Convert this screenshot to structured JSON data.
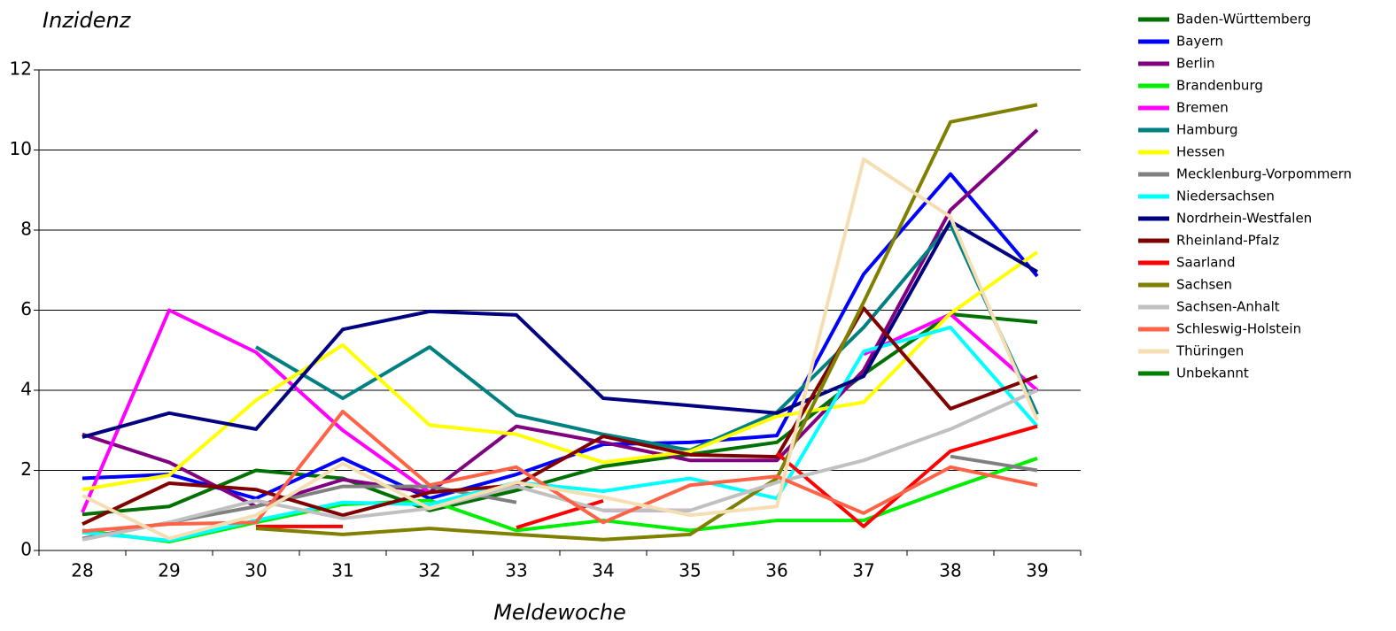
{
  "chart_data": {
    "type": "line",
    "title": "Inzidenz",
    "x_label": "Meldewoche",
    "categories": [
      "28",
      "29",
      "30",
      "31",
      "32",
      "33",
      "34",
      "35",
      "36",
      "37",
      "38",
      "39"
    ],
    "ylim": [
      0,
      12
    ],
    "yticks": [
      0,
      2,
      4,
      6,
      8,
      10,
      12
    ],
    "grid": true,
    "series": [
      {
        "name": "Baden-Württemberg",
        "color": "#007000",
        "values": [
          0.9,
          1.1,
          2.0,
          1.8,
          1.0,
          1.5,
          2.1,
          2.4,
          2.7,
          4.4,
          5.9,
          5.7
        ]
      },
      {
        "name": "Bayern",
        "color": "#0000ff",
        "values": [
          1.8,
          1.9,
          1.3,
          2.3,
          1.3,
          1.9,
          2.65,
          2.7,
          2.87,
          6.9,
          9.4,
          6.85
        ]
      },
      {
        "name": "Berlin",
        "color": "#800080",
        "values": [
          2.9,
          2.2,
          1.1,
          1.77,
          1.45,
          3.1,
          2.7,
          2.25,
          2.25,
          4.5,
          8.5,
          10.5
        ]
      },
      {
        "name": "Brandenburg",
        "color": "#00ee00",
        "values": [
          0.5,
          0.22,
          0.7,
          1.15,
          1.25,
          0.5,
          0.75,
          0.5,
          0.75,
          0.75,
          1.55,
          2.3
        ]
      },
      {
        "name": "Bremen",
        "color": "#ff00ff",
        "values": [
          0.95,
          6.0,
          4.95,
          3.0,
          1.45,
          null,
          1.0,
          1.0,
          null,
          4.9,
          5.9,
          4.0
        ]
      },
      {
        "name": "Hamburg",
        "color": "#008080",
        "values": [
          null,
          null,
          5.08,
          3.8,
          5.08,
          3.38,
          2.9,
          2.5,
          3.45,
          5.57,
          8.15,
          3.4
        ]
      },
      {
        "name": "Hessen",
        "color": "#ffff00",
        "values": [
          1.52,
          1.88,
          3.75,
          5.13,
          3.13,
          2.9,
          2.2,
          2.47,
          3.35,
          3.7,
          5.92,
          7.45
        ]
      },
      {
        "name": "Mecklenburg-Vorpommern",
        "color": "#808080",
        "values": [
          0.3,
          0.7,
          1.1,
          1.6,
          1.6,
          1.2,
          null,
          null,
          null,
          null,
          2.35,
          2.0
        ]
      },
      {
        "name": "Niedersachsen",
        "color": "#00ffff",
        "values": [
          0.45,
          0.25,
          0.75,
          1.2,
          1.15,
          1.7,
          1.48,
          1.8,
          1.3,
          4.97,
          5.57,
          3.1
        ]
      },
      {
        "name": "Nordrhein-Westfalen",
        "color": "#000080",
        "values": [
          2.83,
          3.43,
          3.03,
          5.52,
          5.97,
          5.88,
          3.8,
          3.62,
          3.43,
          4.35,
          8.22,
          6.96
        ]
      },
      {
        "name": "Rheinland-Pfalz",
        "color": "#800000",
        "values": [
          0.66,
          1.68,
          1.52,
          0.88,
          1.45,
          1.63,
          2.85,
          2.39,
          2.34,
          6.05,
          3.54,
          4.35
        ]
      },
      {
        "name": "Saarland",
        "color": "#ff0000",
        "values": [
          null,
          null,
          0.6,
          0.6,
          null,
          0.57,
          1.24,
          null,
          2.43,
          0.6,
          2.48,
          3.1
        ]
      },
      {
        "name": "Sachsen",
        "color": "#808000",
        "values": [
          null,
          null,
          0.55,
          0.4,
          0.55,
          0.4,
          0.27,
          0.4,
          1.8,
          6.2,
          10.7,
          11.13
        ]
      },
      {
        "name": "Sachsen-Anhalt",
        "color": "#c0c0c0",
        "values": [
          0.27,
          0.7,
          1.25,
          0.8,
          1.05,
          1.6,
          1.0,
          1.0,
          1.7,
          2.25,
          3.03,
          4.0
        ]
      },
      {
        "name": "Schleswig-Holstein",
        "color": "#ff6347",
        "values": [
          0.48,
          0.66,
          0.7,
          3.47,
          1.63,
          2.08,
          0.7,
          1.63,
          1.85,
          0.93,
          2.08,
          1.63
        ]
      },
      {
        "name": "Thüringen",
        "color": "#f5deb3",
        "values": [
          1.37,
          0.3,
          0.88,
          2.17,
          1.05,
          1.7,
          1.33,
          0.88,
          1.1,
          9.77,
          8.33,
          3.25
        ]
      },
      {
        "name": "Unbekannt",
        "color": "#008000",
        "values": [
          null,
          null,
          null,
          null,
          null,
          null,
          null,
          null,
          null,
          null,
          null,
          null
        ]
      }
    ]
  }
}
